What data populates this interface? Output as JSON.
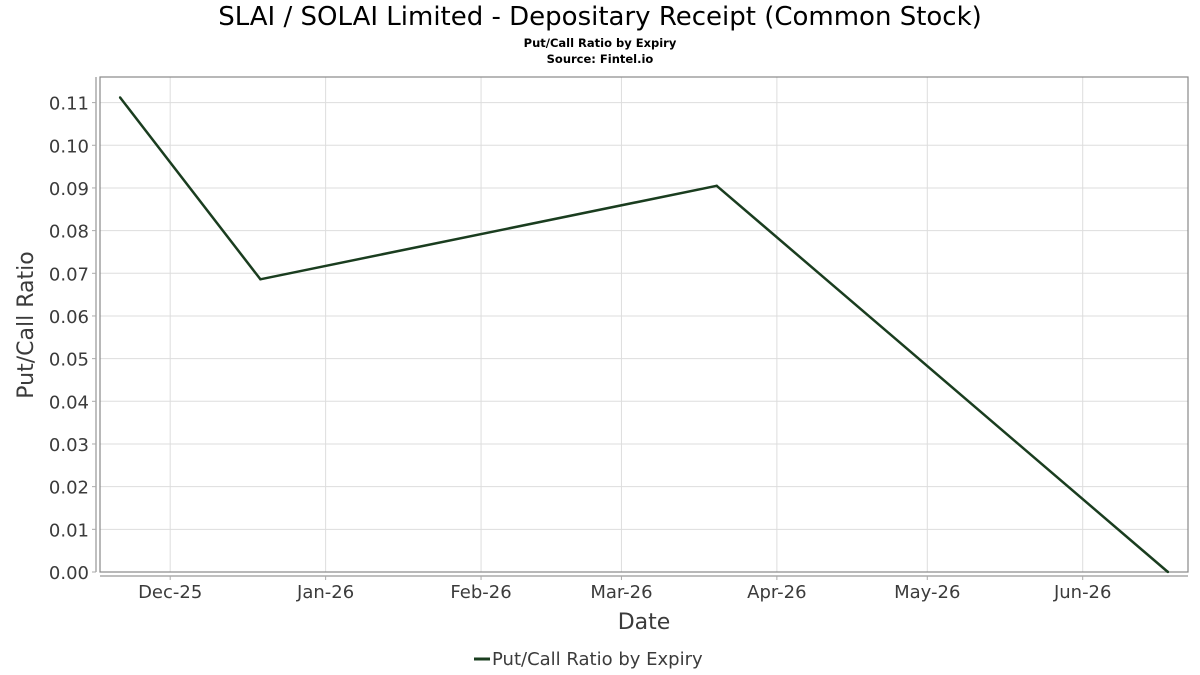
{
  "header": {
    "title": "SLAI / SOLAI Limited - Depositary Receipt (Common Stock)",
    "subtitle": "Put/Call Ratio by Expiry",
    "source": "Source: Fintel.io"
  },
  "chart_data": {
    "type": "line",
    "title": "SLAI / SOLAI Limited - Depositary Receipt (Common Stock)",
    "subtitle": "Put/Call Ratio by Expiry",
    "xlabel": "Date",
    "ylabel": "Put/Call Ratio",
    "ylim": [
      0,
      0.116
    ],
    "xlim": [
      "2025-11-17",
      "2026-06-22"
    ],
    "grid": true,
    "legend_position": "bottom-center",
    "y_ticks": [
      "0.00",
      "0.01",
      "0.02",
      "0.03",
      "0.04",
      "0.05",
      "0.06",
      "0.07",
      "0.08",
      "0.09",
      "0.10",
      "0.11"
    ],
    "x_ticks": [
      {
        "label": "Dec-25",
        "date": "2025-12-01"
      },
      {
        "label": "Jan-26",
        "date": "2026-01-01"
      },
      {
        "label": "Feb-26",
        "date": "2026-02-01"
      },
      {
        "label": "Mar-26",
        "date": "2026-03-01"
      },
      {
        "label": "Apr-26",
        "date": "2026-04-01"
      },
      {
        "label": "May-26",
        "date": "2026-05-01"
      },
      {
        "label": "Jun-26",
        "date": "2026-06-01"
      }
    ],
    "series": [
      {
        "name": "Put/Call Ratio by Expiry",
        "color": "#1a3d1f",
        "x": [
          "2025-11-21",
          "2025-12-19",
          "2026-03-20",
          "2026-06-18"
        ],
        "values": [
          0.1112,
          0.0686,
          0.0905,
          0.0
        ]
      }
    ]
  }
}
